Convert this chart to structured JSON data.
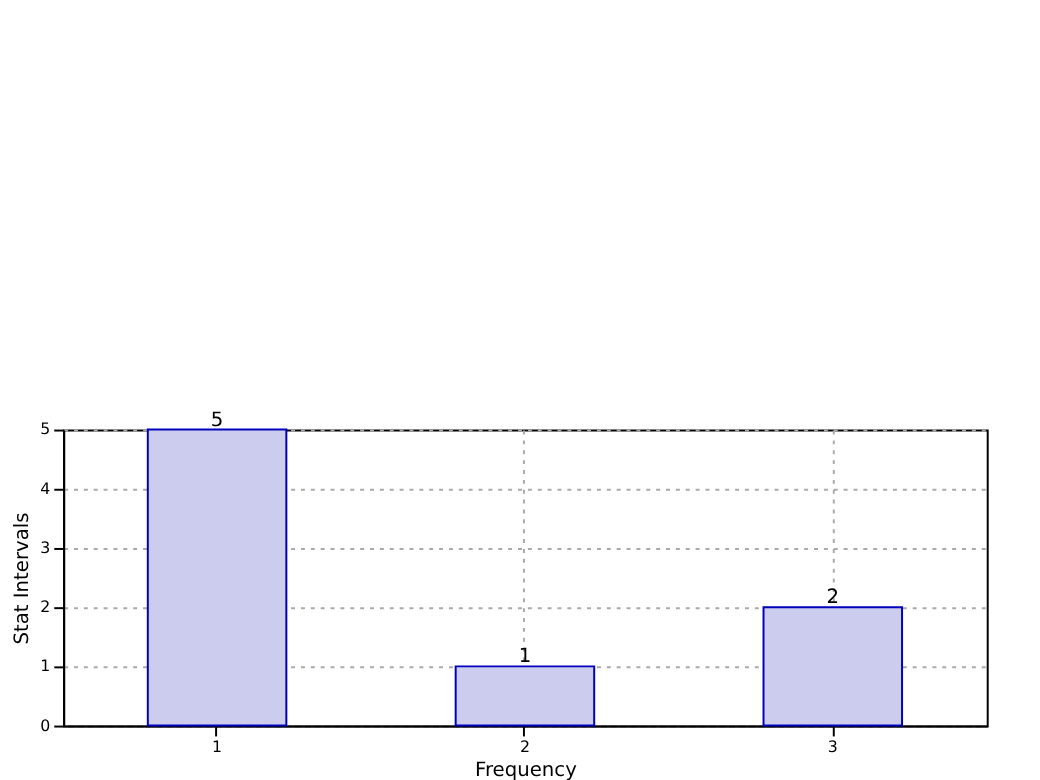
{
  "chart_data": {
    "type": "bar",
    "xlabel": "Frequency",
    "ylabel": "Stat Intervals",
    "categories": [
      "1",
      "2",
      "3"
    ],
    "values": [
      5,
      1,
      2
    ],
    "color": "#ccccee",
    "ylim": [
      0,
      5
    ],
    "yticks": [
      0,
      1,
      2,
      3,
      4,
      5
    ],
    "grid": true,
    "data_labels": true
  }
}
